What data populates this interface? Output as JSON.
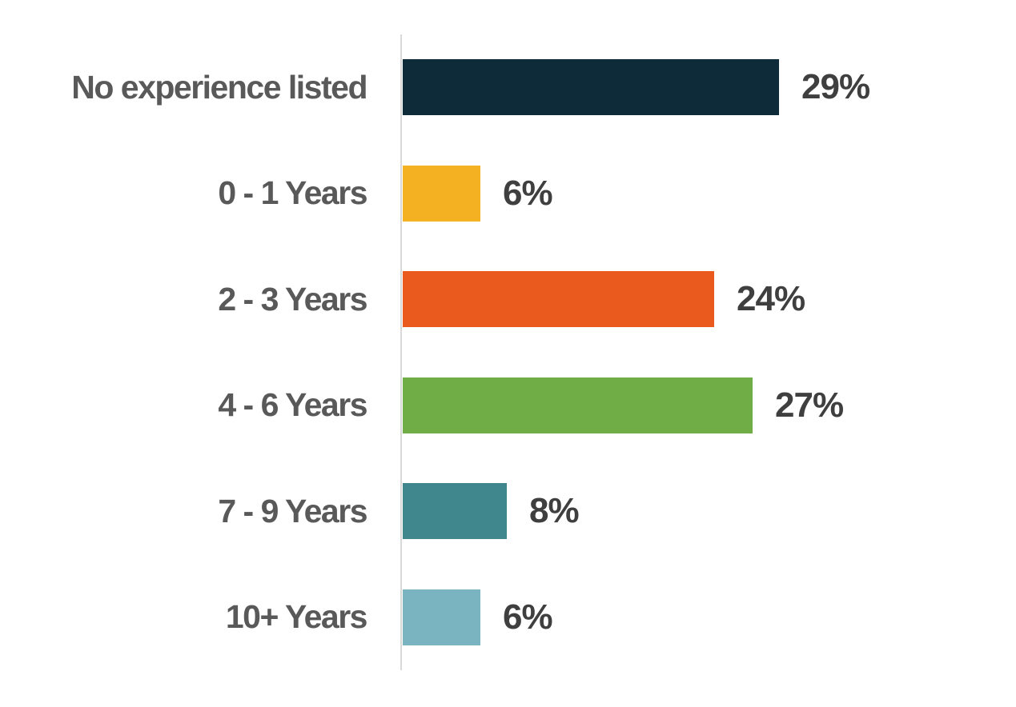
{
  "chart_data": {
    "type": "bar",
    "orientation": "horizontal",
    "title": "",
    "xlabel": "",
    "ylabel": "",
    "categories": [
      "No experience listed",
      "0 - 1 Years",
      "2 - 3 Years",
      "4 - 6 Years",
      "7 - 9 Years",
      "10+ Years"
    ],
    "values": [
      29,
      6,
      24,
      27,
      8,
      6
    ],
    "value_labels": [
      "29%",
      "6%",
      "24%",
      "27%",
      "8%",
      "6%"
    ],
    "colors": [
      "#0D2B38",
      "#F4B223",
      "#EA5A1E",
      "#70AD47",
      "#3F878D",
      "#7AB4C0"
    ],
    "xlim": [
      0,
      100
    ],
    "grid": false,
    "legend": "none",
    "data_labels": "outside-end",
    "axis_line_color": "#D9D9D9",
    "category_label_color": "#595959",
    "value_label_color": "#3F3F3F",
    "background_color": "#FFFFFF"
  }
}
